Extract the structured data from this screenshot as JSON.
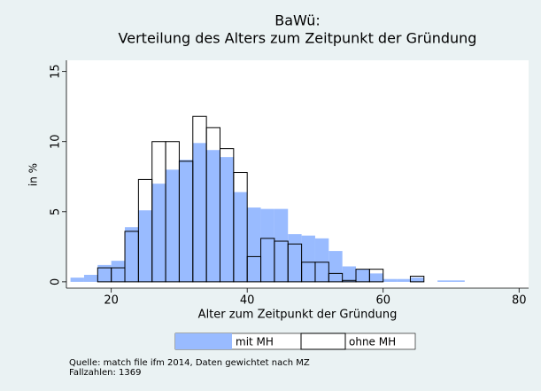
{
  "chart_data": {
    "type": "histogram",
    "title": "BaWü:",
    "subtitle": "Verteilung des Alters zum Zeitpunkt der Gründung",
    "x_label": "Alter zum Zeitpunkt der Gründung",
    "y_label": "in %",
    "notes": [
      "Quelle: match file ifm 2014, Daten gewichtet nach MZ",
      "Fallzahlen: 1369"
    ],
    "xlim": [
      13.4,
      81.4
    ],
    "xticks": [
      20,
      40,
      60,
      80
    ],
    "ylim": [
      -0.45,
      15.8
    ],
    "yticks": [
      0,
      5,
      10,
      15
    ],
    "grid": false,
    "series": [
      {
        "name": "mit MH",
        "color": "#99bbff",
        "fill": true,
        "bins": [
          14,
          16,
          18,
          20,
          22,
          24,
          26,
          28,
          30,
          32,
          34,
          36,
          38,
          40,
          42,
          44,
          46,
          48,
          50,
          52,
          54,
          56,
          58,
          60,
          62,
          64,
          66,
          68,
          70,
          72
        ],
        "values": [
          0.3,
          0.5,
          1.2,
          1.5,
          3.9,
          5.1,
          7.0,
          8.0,
          8.7,
          9.9,
          9.4,
          8.9,
          6.4,
          5.3,
          5.2,
          5.2,
          3.4,
          3.3,
          3.1,
          2.2,
          1.1,
          0.9,
          0.6,
          0.2,
          0.2,
          0.3,
          0.0,
          0.1,
          0.1
        ]
      },
      {
        "name": "ohne MH",
        "color": "#000000",
        "fill": false,
        "bins": [
          18,
          20,
          22,
          24,
          26,
          28,
          30,
          32,
          34,
          36,
          38,
          40,
          42,
          44,
          46,
          48,
          50,
          52,
          54,
          56,
          58,
          60,
          62,
          64,
          66
        ],
        "values": [
          1.0,
          1.0,
          3.6,
          7.3,
          10.0,
          10.0,
          8.6,
          11.8,
          11.0,
          9.5,
          7.8,
          1.8,
          3.1,
          2.9,
          2.7,
          1.4,
          1.4,
          0.6,
          0.1,
          0.9,
          0.9,
          0,
          0,
          0.4
        ]
      }
    ]
  }
}
